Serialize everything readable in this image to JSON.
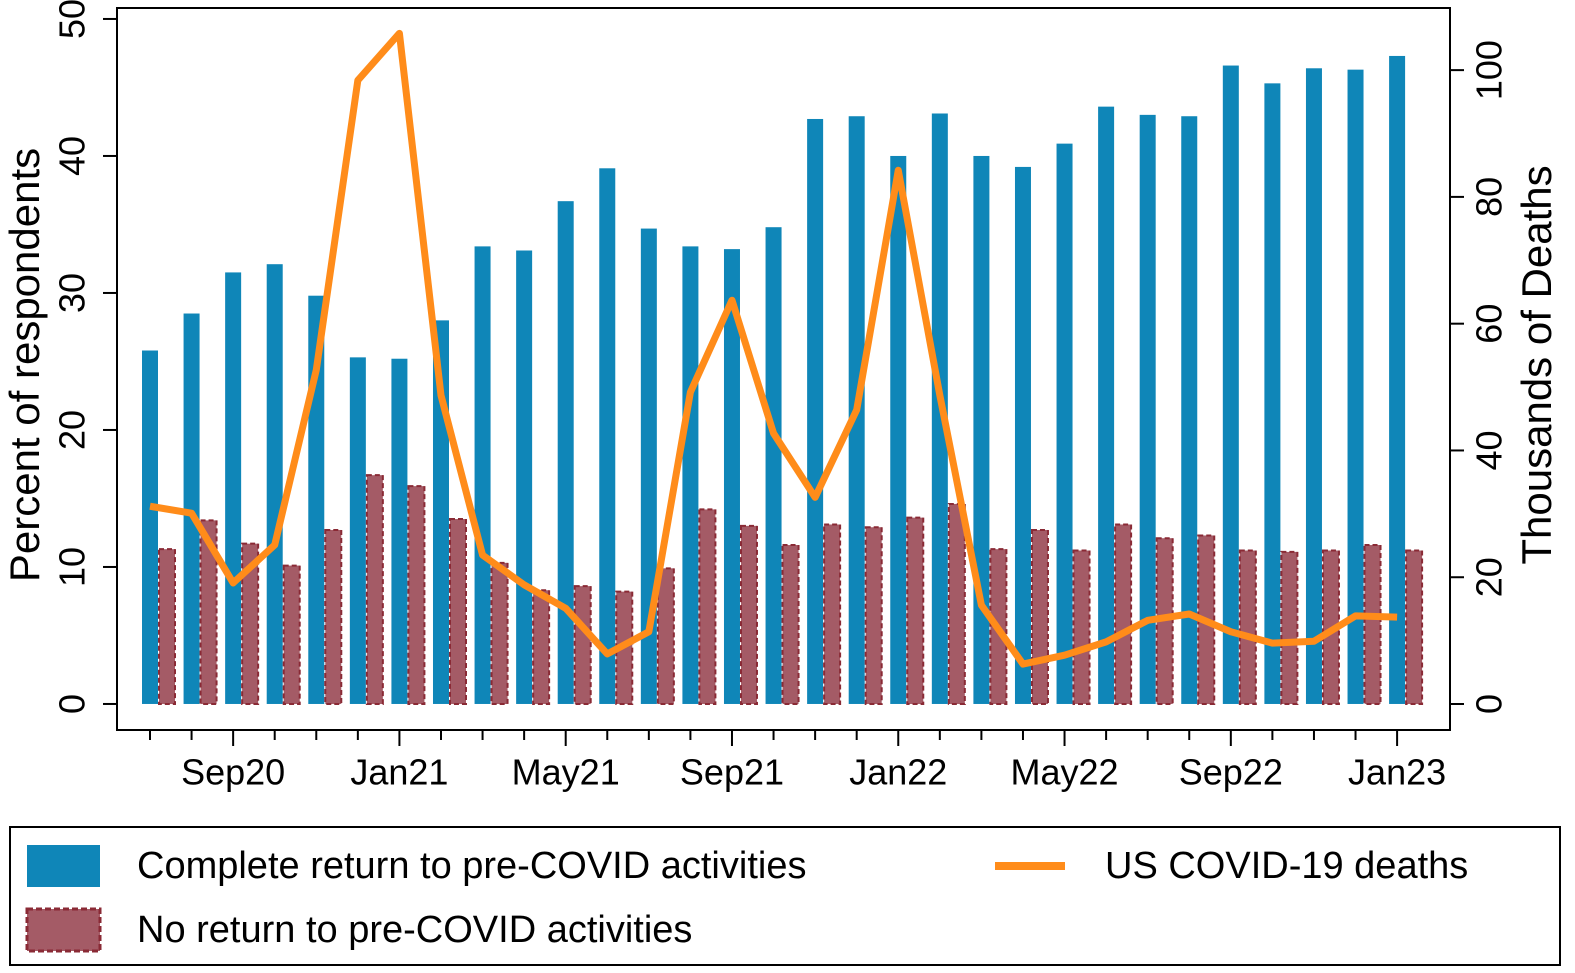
{
  "chart_data": {
    "type": "bar-line",
    "y_label": "Percent of respondents",
    "y2_label": "Thousands of Deaths",
    "categories": [
      null,
      null,
      "Sep20",
      null,
      null,
      null,
      "Jan21",
      null,
      null,
      null,
      "May21",
      null,
      null,
      null,
      "Sep21",
      null,
      null,
      null,
      "Jan22",
      null,
      null,
      null,
      "May22",
      null,
      null,
      null,
      "Sep22",
      null,
      null,
      null,
      "Jan23"
    ],
    "series": [
      {
        "name": "Complete return to pre-COVID activities",
        "type": "bar",
        "axis": "y",
        "color": "#0f86b8",
        "values": [
          25.8,
          28.5,
          31.5,
          32.1,
          29.8,
          25.3,
          25.2,
          28.0,
          33.4,
          33.1,
          36.7,
          39.1,
          34.7,
          33.4,
          33.2,
          34.8,
          42.7,
          42.9,
          40.0,
          43.1,
          40.0,
          39.2,
          40.9,
          43.6,
          43.0,
          42.9,
          46.6,
          45.3,
          46.4,
          46.3,
          47.3
        ]
      },
      {
        "name": "No return to pre-COVID activities",
        "type": "bar",
        "axis": "y",
        "color": "#a45b66",
        "values": [
          11.3,
          13.4,
          11.7,
          10.1,
          12.7,
          16.7,
          15.9,
          13.5,
          10.3,
          8.3,
          8.6,
          8.2,
          9.9,
          14.2,
          13.0,
          11.6,
          13.1,
          12.9,
          13.6,
          14.6,
          11.3,
          12.7,
          11.2,
          13.1,
          12.1,
          12.3,
          11.2,
          11.1,
          11.2,
          11.6,
          11.2
        ]
      },
      {
        "name": "US COVID-19 deaths",
        "type": "line",
        "axis": "y2",
        "color": "#ff8c1a",
        "values": [
          31.2,
          30.1,
          19.1,
          25.1,
          52.7,
          98.4,
          105.8,
          48.7,
          23.5,
          18.8,
          15.1,
          7.9,
          11.4,
          49.2,
          63.7,
          42.7,
          32.6,
          46.4,
          84.2,
          48.7,
          15.6,
          6.3,
          7.7,
          9.8,
          13.2,
          14.2,
          11.4,
          9.6,
          9.9,
          13.9,
          13.7
        ]
      }
    ],
    "ylim": [
      -1.9,
      50.8
    ],
    "yticks": [
      0,
      10,
      20,
      30,
      40,
      50
    ],
    "y2lim": [
      -4.1,
      109.8
    ],
    "y2ticks": [
      0,
      20,
      40,
      60,
      80,
      100
    ],
    "grid": false
  }
}
